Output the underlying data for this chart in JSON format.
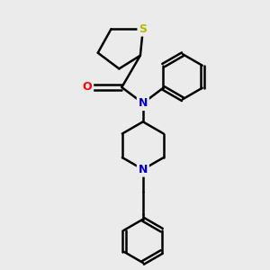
{
  "background_color": "#ebebeb",
  "atom_colors": {
    "S": "#b8b800",
    "N": "#0000cc",
    "O": "#ff0000",
    "C": "#000000"
  },
  "bond_color": "#000000",
  "bond_width": 1.8,
  "figsize": [
    3.0,
    3.0
  ],
  "dpi": 100,
  "xlim": [
    0,
    10
  ],
  "ylim": [
    0,
    10
  ]
}
